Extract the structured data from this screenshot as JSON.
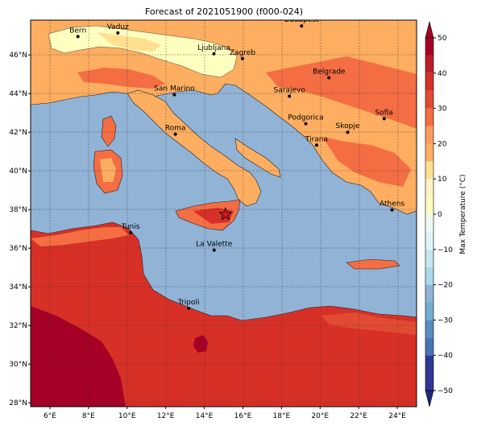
{
  "map": {
    "title": "Forecast of 2021051900 (f000-024)",
    "extent": {
      "lon": [
        5,
        25
      ],
      "lat": [
        27.8,
        47.8
      ]
    },
    "lon_ticks": [
      {
        "value": 6,
        "label": "6°E"
      },
      {
        "value": 8,
        "label": "8°E"
      },
      {
        "value": 10,
        "label": "10°E"
      },
      {
        "value": 12,
        "label": "12°E"
      },
      {
        "value": 14,
        "label": "14°E"
      },
      {
        "value": 16,
        "label": "16°E"
      },
      {
        "value": 18,
        "label": "18°E"
      },
      {
        "value": 20,
        "label": "20°E"
      },
      {
        "value": 22,
        "label": "22°E"
      },
      {
        "value": 24,
        "label": "24°E"
      }
    ],
    "lat_ticks": [
      {
        "value": 28,
        "label": "28°N"
      },
      {
        "value": 30,
        "label": "30°N"
      },
      {
        "value": 32,
        "label": "32°N"
      },
      {
        "value": 34,
        "label": "34°N"
      },
      {
        "value": 36,
        "label": "36°N"
      },
      {
        "value": 38,
        "label": "38°N"
      },
      {
        "value": 40,
        "label": "40°N"
      },
      {
        "value": 42,
        "label": "42°N"
      },
      {
        "value": 44,
        "label": "44°N"
      },
      {
        "value": 46,
        "label": "46°N"
      }
    ],
    "grid": true,
    "cities": [
      {
        "name": "Bern",
        "lon": 7.45,
        "lat": 46.95
      },
      {
        "name": "Vaduz",
        "lon": 9.52,
        "lat": 47.14
      },
      {
        "name": "Budapest",
        "lon": 19.04,
        "lat": 47.5
      },
      {
        "name": "Ljubljana",
        "lon": 14.5,
        "lat": 46.06
      },
      {
        "name": "Zagreb",
        "lon": 15.98,
        "lat": 45.81
      },
      {
        "name": "Belgrade",
        "lon": 20.46,
        "lat": 44.82
      },
      {
        "name": "San Marino",
        "lon": 12.45,
        "lat": 43.94
      },
      {
        "name": "Sarajevo",
        "lon": 18.41,
        "lat": 43.86
      },
      {
        "name": "Sofia",
        "lon": 23.32,
        "lat": 42.7
      },
      {
        "name": "Podgorica",
        "lon": 19.26,
        "lat": 42.44
      },
      {
        "name": "Roma",
        "lon": 12.5,
        "lat": 41.9
      },
      {
        "name": "Skopje",
        "lon": 21.43,
        "lat": 42.0
      },
      {
        "name": "Tirana",
        "lon": 19.82,
        "lat": 41.33
      },
      {
        "name": "Athens",
        "lon": 23.73,
        "lat": 37.98
      },
      {
        "name": "Tunis",
        "lon": 10.18,
        "lat": 36.8
      },
      {
        "name": "La Valette",
        "lon": 14.51,
        "lat": 35.9
      },
      {
        "name": "Tripoli",
        "lon": 13.19,
        "lat": 32.89
      }
    ],
    "star_marker": {
      "lon": 15.1,
      "lat": 37.75,
      "color": "#d7191c"
    },
    "sea_color": "#91b3d6"
  },
  "colorbar": {
    "label": "Max Temperature (°C)",
    "ticks": [
      "50",
      "40",
      "30",
      "20",
      "10",
      "0",
      "−10",
      "−20",
      "−30",
      "−40",
      "−50"
    ],
    "levels": [
      -50,
      -40,
      -35,
      -30,
      -25,
      -20,
      -15,
      -10,
      -5,
      0,
      5,
      10,
      15,
      20,
      25,
      30,
      35,
      40,
      45,
      50
    ],
    "colors": [
      "#313695",
      "#4575b4",
      "#5a8cc2",
      "#74add1",
      "#91b3d6",
      "#abd9e9",
      "#c6e6f0",
      "#e0f3f8",
      "#f0f9f2",
      "#ffffbf",
      "#fff3c4",
      "#fee090",
      "#fdae61",
      "#fd9d5c",
      "#f46d43",
      "#e34a33",
      "#d73027",
      "#b81e28",
      "#a50026"
    ],
    "extend_low_color": "#1f2a7a",
    "extend_high_color": "#a50026"
  }
}
